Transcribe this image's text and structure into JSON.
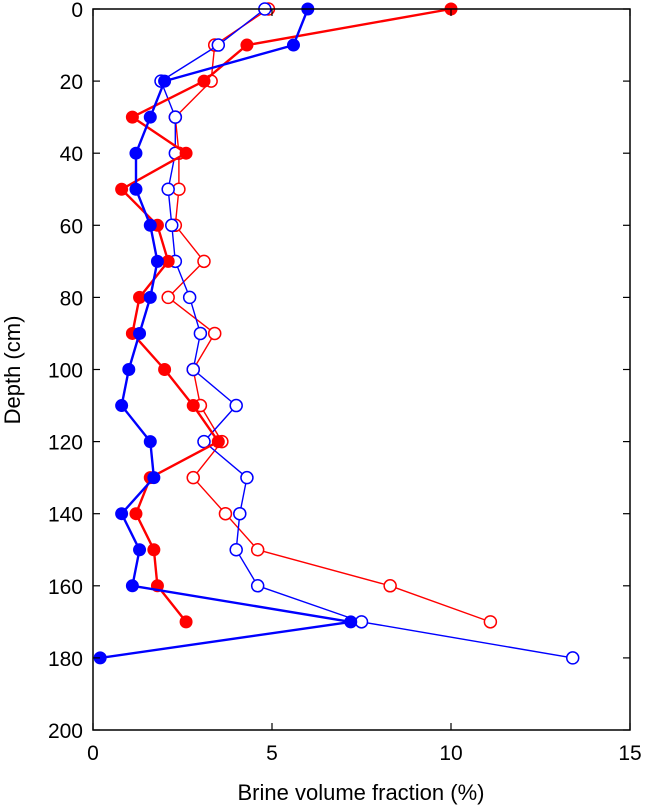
{
  "chart_data": {
    "type": "line",
    "title": "",
    "xlabel": "Brine volume fraction (%)",
    "ylabel": "Depth (cm)",
    "xlim": [
      0,
      15
    ],
    "ylim": [
      0,
      200
    ],
    "y_reversed": true,
    "xticks": [
      0,
      5,
      10,
      15
    ],
    "yticks": [
      0,
      20,
      40,
      60,
      80,
      100,
      120,
      140,
      160,
      180,
      200
    ],
    "grid": false,
    "series": [
      {
        "color": "#ff0000",
        "marker": "filled-circle",
        "line_weight": "thick",
        "points": [
          [
            10.0,
            0
          ],
          [
            4.3,
            10
          ],
          [
            3.1,
            20
          ],
          [
            1.1,
            30
          ],
          [
            2.6,
            40
          ],
          [
            0.8,
            50
          ],
          [
            1.8,
            60
          ],
          [
            2.1,
            70
          ],
          [
            1.3,
            80
          ],
          [
            1.1,
            90
          ],
          [
            2.0,
            100
          ],
          [
            2.8,
            110
          ],
          [
            3.5,
            120
          ],
          [
            1.6,
            130
          ],
          [
            1.2,
            140
          ],
          [
            1.7,
            150
          ],
          [
            1.8,
            160
          ],
          [
            2.6,
            170
          ]
        ]
      },
      {
        "color": "#ff0000",
        "marker": "open-circle",
        "line_weight": "thin",
        "points": [
          [
            4.9,
            0
          ],
          [
            3.4,
            10
          ],
          [
            3.3,
            20
          ],
          [
            2.3,
            30
          ],
          [
            2.4,
            40
          ],
          [
            2.4,
            50
          ],
          [
            2.3,
            60
          ],
          [
            3.1,
            70
          ],
          [
            2.1,
            80
          ],
          [
            3.4,
            90
          ],
          [
            2.8,
            100
          ],
          [
            3.0,
            110
          ],
          [
            3.6,
            120
          ],
          [
            2.8,
            130
          ],
          [
            3.7,
            140
          ],
          [
            4.6,
            150
          ],
          [
            8.3,
            160
          ],
          [
            11.1,
            170
          ]
        ]
      },
      {
        "color": "#0000ff",
        "marker": "filled-circle",
        "line_weight": "thick",
        "points": [
          [
            6.0,
            0
          ],
          [
            5.6,
            10
          ],
          [
            2.0,
            20
          ],
          [
            1.6,
            30
          ],
          [
            1.2,
            40
          ],
          [
            1.2,
            50
          ],
          [
            1.6,
            60
          ],
          [
            1.8,
            70
          ],
          [
            1.6,
            80
          ],
          [
            1.3,
            90
          ],
          [
            1.0,
            100
          ],
          [
            0.8,
            110
          ],
          [
            1.6,
            120
          ],
          [
            1.7,
            130
          ],
          [
            0.8,
            140
          ],
          [
            1.3,
            150
          ],
          [
            1.1,
            160
          ],
          [
            7.2,
            170
          ],
          [
            0.2,
            180
          ]
        ]
      },
      {
        "color": "#0000ff",
        "marker": "open-circle",
        "line_weight": "thin",
        "points": [
          [
            4.8,
            0
          ],
          [
            3.5,
            10
          ],
          [
            1.9,
            20
          ],
          [
            2.3,
            30
          ],
          [
            2.3,
            40
          ],
          [
            2.1,
            50
          ],
          [
            2.2,
            60
          ],
          [
            2.3,
            70
          ],
          [
            2.7,
            80
          ],
          [
            3.0,
            90
          ],
          [
            2.8,
            100
          ],
          [
            4.0,
            110
          ],
          [
            3.1,
            120
          ],
          [
            4.3,
            130
          ],
          [
            4.1,
            140
          ],
          [
            4.0,
            150
          ],
          [
            4.6,
            160
          ],
          [
            7.5,
            170
          ],
          [
            13.4,
            180
          ]
        ]
      }
    ]
  }
}
